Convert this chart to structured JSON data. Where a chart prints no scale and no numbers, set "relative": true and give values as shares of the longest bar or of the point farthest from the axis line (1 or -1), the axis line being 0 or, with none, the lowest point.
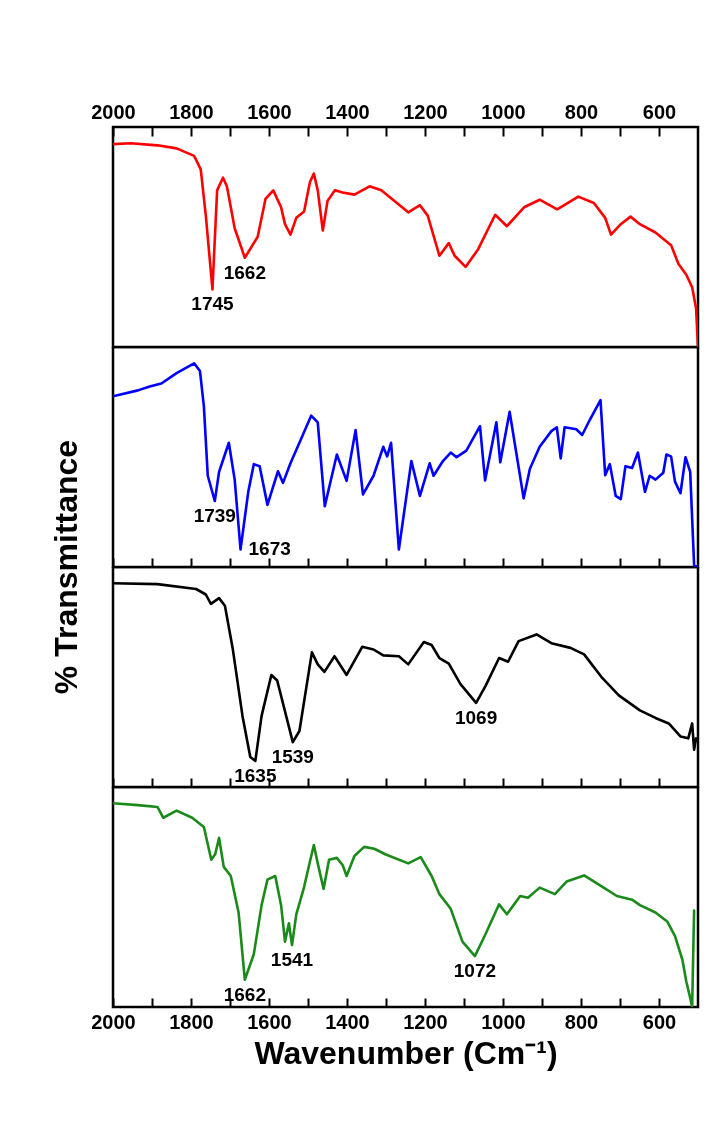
{
  "chart_data": [
    {
      "type": "line",
      "relative": true,
      "ylabel": "% Transmittance",
      "xlim": [
        2000,
        500
      ],
      "xticks": [
        2000,
        {
          "value": 1900,
          "label": null
        },
        1800,
        {
          "value": 1700,
          "label": null
        },
        1600,
        {
          "value": 1500,
          "label": null
        },
        1400,
        {
          "value": 1300,
          "label": null
        },
        1200,
        {
          "value": 1100,
          "label": null
        },
        1000,
        {
          "value": 900,
          "label": null
        },
        800,
        {
          "value": 700,
          "label": null
        },
        600
      ],
      "annotations": [
        {
          "text": "1745",
          "x": 1745,
          "y": 0.283
        },
        {
          "text": "1662",
          "x": 1662,
          "y": 0.438
        }
      ],
      "series": [
        {
          "color": "#ff0000",
          "x": [
            2000,
            1955,
            1886,
            1837,
            1792,
            1775,
            1762,
            1745,
            1733,
            1718,
            1708,
            1688,
            1662,
            1629,
            1609,
            1589,
            1569,
            1559,
            1545,
            1530,
            1510,
            1495,
            1485,
            1475,
            1462,
            1450,
            1431,
            1411,
            1381,
            1342,
            1312,
            1272,
            1243,
            1213,
            1193,
            1163,
            1139,
            1124,
            1096,
            1064,
            1020,
            990,
            946,
            906,
            861,
            807,
            767,
            738,
            723,
            698,
            673,
            649,
            609,
            569,
            550,
            530,
            515,
            505,
            500
          ],
          "values": [
            0.996,
            1.0,
            0.99,
            0.975,
            0.938,
            0.872,
            0.645,
            0.283,
            0.769,
            0.831,
            0.789,
            0.583,
            0.438,
            0.541,
            0.727,
            0.769,
            0.686,
            0.603,
            0.552,
            0.634,
            0.665,
            0.81,
            0.851,
            0.769,
            0.572,
            0.717,
            0.769,
            0.758,
            0.748,
            0.789,
            0.769,
            0.707,
            0.661,
            0.696,
            0.645,
            0.448,
            0.51,
            0.448,
            0.393,
            0.479,
            0.649,
            0.593,
            0.686,
            0.723,
            0.676,
            0.738,
            0.707,
            0.634,
            0.552,
            0.603,
            0.64,
            0.603,
            0.562,
            0.5,
            0.407,
            0.355,
            0.293,
            0.19,
            0
          ]
        }
      ]
    },
    {
      "type": "line",
      "relative": true,
      "tick_labels": false,
      "xlim": [
        2000,
        500
      ],
      "xticks": [
        2000,
        {
          "value": 1900,
          "label": null
        },
        1800,
        {
          "value": 1700,
          "label": null
        },
        1600,
        {
          "value": 1500,
          "label": null
        },
        1400,
        {
          "value": 1300,
          "label": null
        },
        1200,
        {
          "value": 1100,
          "label": null
        },
        1000,
        {
          "value": 900,
          "label": null
        },
        800,
        {
          "value": 700,
          "label": null
        },
        600
      ],
      "annotations": [
        {
          "text": "1739",
          "x": 1739,
          "y": 0.324
        },
        {
          "text": "1673",
          "x": 1673,
          "y": 0.086
        }
      ],
      "series": [
        {
          "color": "#0000ff",
          "x": [
            2000,
            1936,
            1906,
            1876,
            1837,
            1792,
            1777,
            1767,
            1757,
            1739,
            1728,
            1718,
            1703,
            1688,
            1673,
            1653,
            1639,
            1624,
            1604,
            1577,
            1564,
            1545,
            1520,
            1492,
            1475,
            1457,
            1426,
            1401,
            1378,
            1359,
            1332,
            1307,
            1297,
            1287,
            1267,
            1235,
            1213,
            1188,
            1178,
            1154,
            1134,
            1119,
            1094,
            1059,
            1046,
            1017,
            1007,
            983,
            947,
            931,
            906,
            876,
            862,
            852,
            842,
            812,
            797,
            777,
            750,
            738,
            726,
            711,
            698,
            686,
            669,
            654,
            636,
            624,
            609,
            589,
            581,
            569,
            559,
            545,
            532,
            520,
            510,
            502
          ],
          "values": [
            0.838,
            0.867,
            0.886,
            0.901,
            0.952,
            1.0,
            0.962,
            0.79,
            0.448,
            0.324,
            0.467,
            0.524,
            0.61,
            0.429,
            0.086,
            0.371,
            0.505,
            0.495,
            0.305,
            0.47,
            0.413,
            0.509,
            0.619,
            0.743,
            0.71,
            0.299,
            0.552,
            0.423,
            0.672,
            0.356,
            0.448,
            0.59,
            0.543,
            0.61,
            0.086,
            0.52,
            0.349,
            0.509,
            0.448,
            0.52,
            0.562,
            0.539,
            0.571,
            0.691,
            0.425,
            0.71,
            0.514,
            0.762,
            0.337,
            0.482,
            0.59,
            0.667,
            0.686,
            0.533,
            0.686,
            0.676,
            0.648,
            0.724,
            0.819,
            0.451,
            0.505,
            0.349,
            0.333,
            0.495,
            0.486,
            0.562,
            0.368,
            0.448,
            0.429,
            0.463,
            0.552,
            0.543,
            0.419,
            0.362,
            0.539,
            0.467,
            0.01,
            0
          ]
        }
      ]
    },
    {
      "type": "line",
      "relative": true,
      "tick_labels": false,
      "xlim": [
        2000,
        500
      ],
      "xticks": [
        2000,
        {
          "value": 1900,
          "label": null
        },
        1800,
        {
          "value": 1700,
          "label": null
        },
        1600,
        {
          "value": 1500,
          "label": null
        },
        1400,
        {
          "value": 1300,
          "label": null
        },
        1200,
        {
          "value": 1100,
          "label": null
        },
        1000,
        {
          "value": 900,
          "label": null
        },
        800,
        {
          "value": 700,
          "label": null
        },
        600
      ],
      "annotations": [
        {
          "text": "1635",
          "x": 1635,
          "y": 0.128
        },
        {
          "text": "1539",
          "x": 1539,
          "y": 0.22
        },
        {
          "text": "1069",
          "x": 1069,
          "y": 0.413
        }
      ],
      "series": [
        {
          "color": "#000000",
          "x": [
            2000,
            1886,
            1787,
            1762,
            1749,
            1728,
            1713,
            1693,
            1668,
            1648,
            1635,
            1619,
            1594,
            1579,
            1539,
            1522,
            1490,
            1475,
            1458,
            1432,
            1401,
            1361,
            1332,
            1307,
            1267,
            1243,
            1203,
            1183,
            1163,
            1139,
            1109,
            1069,
            1045,
            1010,
            987,
            960,
            914,
            876,
            827,
            792,
            748,
            703,
            649,
            609,
            575,
            545,
            525,
            515,
            510,
            505
          ],
          "values": [
            1.0,
            0.996,
            0.972,
            0.945,
            0.899,
            0.927,
            0.89,
            0.679,
            0.349,
            0.147,
            0.128,
            0.349,
            0.55,
            0.523,
            0.22,
            0.275,
            0.661,
            0.602,
            0.565,
            0.642,
            0.55,
            0.688,
            0.675,
            0.646,
            0.642,
            0.602,
            0.712,
            0.697,
            0.633,
            0.606,
            0.505,
            0.413,
            0.495,
            0.633,
            0.615,
            0.716,
            0.749,
            0.706,
            0.683,
            0.651,
            0.541,
            0.45,
            0.376,
            0.339,
            0.312,
            0.248,
            0.239,
            0.312,
            0.183,
            0.239
          ]
        }
      ]
    },
    {
      "type": "line",
      "relative": true,
      "xlabel": "Wavenumber (Cm⁻¹)",
      "xlim": [
        2000,
        500
      ],
      "xticks": [
        2000,
        {
          "value": 1900,
          "label": null
        },
        1800,
        {
          "value": 1700,
          "label": null
        },
        1600,
        {
          "value": 1500,
          "label": null
        },
        1400,
        {
          "value": 1300,
          "label": null
        },
        1200,
        {
          "value": 1100,
          "label": null
        },
        1000,
        {
          "value": 900,
          "label": null
        },
        800,
        {
          "value": 700,
          "label": null
        },
        600
      ],
      "annotations": [
        {
          "text": "1662",
          "x": 1662,
          "y": 0.134
        },
        {
          "text": "1541",
          "x": 1541,
          "y": 0.304
        },
        {
          "text": "1072",
          "x": 1072,
          "y": 0.25
        }
      ],
      "series": [
        {
          "color": "#1a8a1a",
          "x": [
            2000,
            1936,
            1886,
            1871,
            1837,
            1797,
            1767,
            1748,
            1738,
            1728,
            1716,
            1698,
            1678,
            1662,
            1639,
            1619,
            1604,
            1584,
            1569,
            1559,
            1549,
            1541,
            1530,
            1510,
            1495,
            1485,
            1475,
            1460,
            1446,
            1426,
            1411,
            1401,
            1381,
            1356,
            1330,
            1302,
            1243,
            1211,
            1183,
            1163,
            1134,
            1104,
            1072,
            1045,
            1010,
            990,
            956,
            936,
            906,
            867,
            837,
            792,
            748,
            708,
            669,
            649,
            609,
            579,
            559,
            540,
            530,
            520,
            515,
            510
          ],
          "values": [
            1.0,
            0.991,
            0.982,
            0.929,
            0.964,
            0.929,
            0.884,
            0.723,
            0.75,
            0.83,
            0.688,
            0.643,
            0.464,
            0.134,
            0.259,
            0.5,
            0.625,
            0.643,
            0.5,
            0.321,
            0.411,
            0.304,
            0.455,
            0.589,
            0.714,
            0.795,
            0.705,
            0.58,
            0.723,
            0.732,
            0.696,
            0.643,
            0.741,
            0.786,
            0.777,
            0.75,
            0.705,
            0.736,
            0.643,
            0.554,
            0.482,
            0.321,
            0.25,
            0.357,
            0.504,
            0.455,
            0.545,
            0.536,
            0.586,
            0.554,
            0.616,
            0.646,
            0.593,
            0.545,
            0.527,
            0.5,
            0.464,
            0.42,
            0.348,
            0.232,
            0.125,
            0.045,
            0,
            0.473
          ]
        }
      ]
    }
  ]
}
